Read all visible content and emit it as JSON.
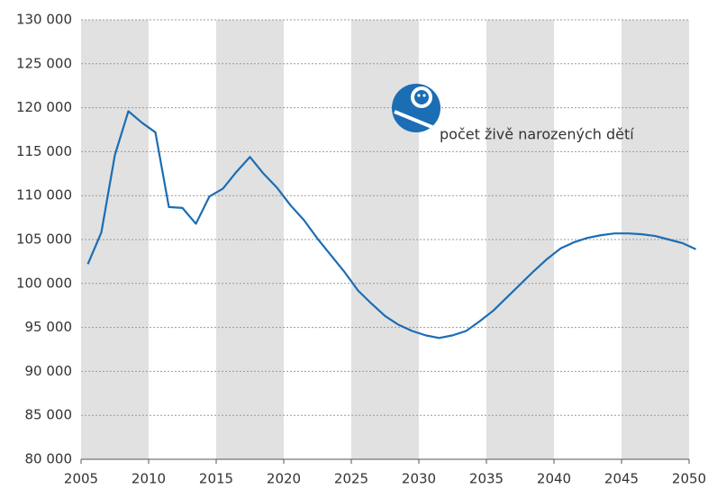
{
  "chart_data": {
    "type": "line",
    "annotation": "počet živě narozených dětí",
    "x": [
      2005.5,
      2006.5,
      2007.5,
      2008.5,
      2009.5,
      2010.5,
      2011.5,
      2012.5,
      2013.5,
      2014.5,
      2015.5,
      2016.5,
      2017.5,
      2018.5,
      2019.5,
      2020.5,
      2021.5,
      2022.5,
      2023.5,
      2024.5,
      2025.5,
      2026.5,
      2027.5,
      2028.5,
      2029.5,
      2030.5,
      2031.5,
      2032.5,
      2033.5,
      2034.5,
      2035.5,
      2036.5,
      2037.5,
      2038.5,
      2039.5,
      2040.5,
      2041.5,
      2042.5,
      2043.5,
      2044.5,
      2045.5,
      2046.5,
      2047.5,
      2048.5,
      2049.5,
      2050.5
    ],
    "series": [
      {
        "color": "#1b6db4",
        "values": [
          102200,
          105800,
          114600,
          119600,
          118300,
          117200,
          108700,
          108600,
          106800,
          109900,
          110800,
          112700,
          114400,
          112500,
          110900,
          108900,
          107200,
          105100,
          103200,
          101300,
          99200,
          97700,
          96300,
          95300,
          94600,
          94100,
          93800,
          94100,
          94600,
          95700,
          96900,
          98400,
          99900,
          101400,
          102800,
          104000,
          104700,
          105200,
          105500,
          105700,
          105700,
          105600,
          105400,
          105000,
          104600,
          103900
        ]
      }
    ],
    "xlim": [
      2005,
      2050
    ],
    "xticks": [
      2005,
      2010,
      2015,
      2020,
      2025,
      2030,
      2035,
      2040,
      2045,
      2050
    ],
    "ylim": [
      80000,
      130000
    ],
    "yticks": [
      {
        "value": 80000,
        "label": "80 000"
      },
      {
        "value": 85000,
        "label": "85 000"
      },
      {
        "value": 90000,
        "label": "90 000"
      },
      {
        "value": 95000,
        "label": "95 000"
      },
      {
        "value": 100000,
        "label": "100 000"
      },
      {
        "value": 105000,
        "label": "105 000"
      },
      {
        "value": 110000,
        "label": "110 000"
      },
      {
        "value": 115000,
        "label": "115 000"
      },
      {
        "value": 120000,
        "label": "120 000"
      },
      {
        "value": 125000,
        "label": "125 000"
      },
      {
        "value": 130000,
        "label": "130 000"
      }
    ],
    "grid": true
  }
}
